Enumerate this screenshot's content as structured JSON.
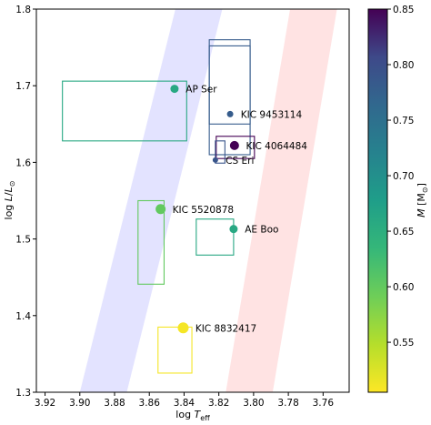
{
  "chart_data": {
    "type": "scatter",
    "xlabel_main": "log ",
    "xlabel_symbol": "T",
    "xlabel_sub": "eff",
    "ylabel_main": "log ",
    "ylabel_symbol": "L",
    "ylabel_ratio": "/",
    "ylabel_denominator": "L",
    "ylabel_sun": "⊙",
    "colorbar_label_main": "M",
    "colorbar_label_unit": " [M",
    "colorbar_label_sun": "⊙",
    "colorbar_label_close": "]",
    "x_inverted": true,
    "xlim": [
      3.925,
      3.745
    ],
    "ylim": [
      1.3,
      1.8
    ],
    "xticks": [
      3.92,
      3.9,
      3.88,
      3.86,
      3.84,
      3.82,
      3.8,
      3.78,
      3.76
    ],
    "xtick_labels": [
      "3.92",
      "3.90",
      "3.88",
      "3.86",
      "3.84",
      "3.82",
      "3.80",
      "3.78",
      "3.76"
    ],
    "yticks": [
      1.3,
      1.4,
      1.5,
      1.6,
      1.7,
      1.8
    ],
    "ytick_labels": [
      "1.3",
      "1.4",
      "1.5",
      "1.6",
      "1.7",
      "1.8"
    ],
    "colorbar": {
      "colormap": "viridis",
      "range": [
        0.505,
        0.85
      ],
      "ticks": [
        0.55,
        0.6,
        0.65,
        0.7,
        0.75,
        0.8,
        0.85
      ],
      "tick_labels": [
        "0.55",
        "0.60",
        "0.65",
        "0.70",
        "0.75",
        "0.80",
        "0.85"
      ]
    },
    "strips": [
      {
        "color": "#0000ff",
        "opacity": 0.11,
        "polygon": [
          [
            3.9,
            1.3
          ],
          [
            3.873,
            1.3
          ],
          [
            3.818,
            1.8
          ],
          [
            3.845,
            1.8
          ]
        ]
      },
      {
        "color": "#ff0000",
        "opacity": 0.11,
        "polygon": [
          [
            3.816,
            1.3
          ],
          [
            3.789,
            1.3
          ],
          [
            3.752,
            1.8
          ],
          [
            3.779,
            1.8
          ]
        ]
      }
    ],
    "stars": [
      {
        "name": "AP Ser",
        "teff": 3.8455,
        "logl": 1.696,
        "mass": 0.66,
        "size": 7
      },
      {
        "name": "KIC 9453114",
        "teff": 3.8135,
        "logl": 1.663,
        "mass": 0.78,
        "size": 5
      },
      {
        "name": "KIC 4064484",
        "teff": 3.811,
        "logl": 1.622,
        "mass": 0.85,
        "size": 8
      },
      {
        "name": "CS Eri",
        "teff": 3.822,
        "logl": 1.603,
        "mass": 0.79,
        "size": 4
      },
      {
        "name": "KIC 5520878",
        "teff": 3.8535,
        "logl": 1.539,
        "mass": 0.6,
        "size": 9
      },
      {
        "name": "AE Boo",
        "teff": 3.8115,
        "logl": 1.513,
        "mass": 0.66,
        "size": 7
      },
      {
        "name": "KIC 8832417",
        "teff": 3.8405,
        "logl": 1.384,
        "mass": 0.51,
        "size": 10
      }
    ],
    "boxes": [
      {
        "teff": [
          3.91,
          3.8385
        ],
        "logl": [
          1.628,
          1.706
        ],
        "mass": 0.66
      },
      {
        "teff": [
          3.8255,
          3.802
        ],
        "logl": [
          1.61,
          1.76
        ],
        "mass": 0.78
      },
      {
        "teff": [
          3.8255,
          3.802
        ],
        "logl": [
          1.65,
          1.752
        ],
        "mass": 0.78
      },
      {
        "teff": [
          3.8215,
          3.7995
        ],
        "logl": [
          1.605,
          1.634
        ],
        "mass": 0.85
      },
      {
        "teff": [
          3.822,
          3.8165
        ],
        "logl": [
          1.599,
          1.628
        ],
        "mass": 0.79
      },
      {
        "teff": [
          3.8665,
          3.8515
        ],
        "logl": [
          1.441,
          1.55
        ],
        "mass": 0.6
      },
      {
        "teff": [
          3.833,
          3.8115
        ],
        "logl": [
          1.479,
          1.526
        ],
        "mass": 0.66
      },
      {
        "teff": [
          3.855,
          3.8355
        ],
        "logl": [
          1.325,
          1.385
        ],
        "mass": 0.51
      }
    ]
  }
}
